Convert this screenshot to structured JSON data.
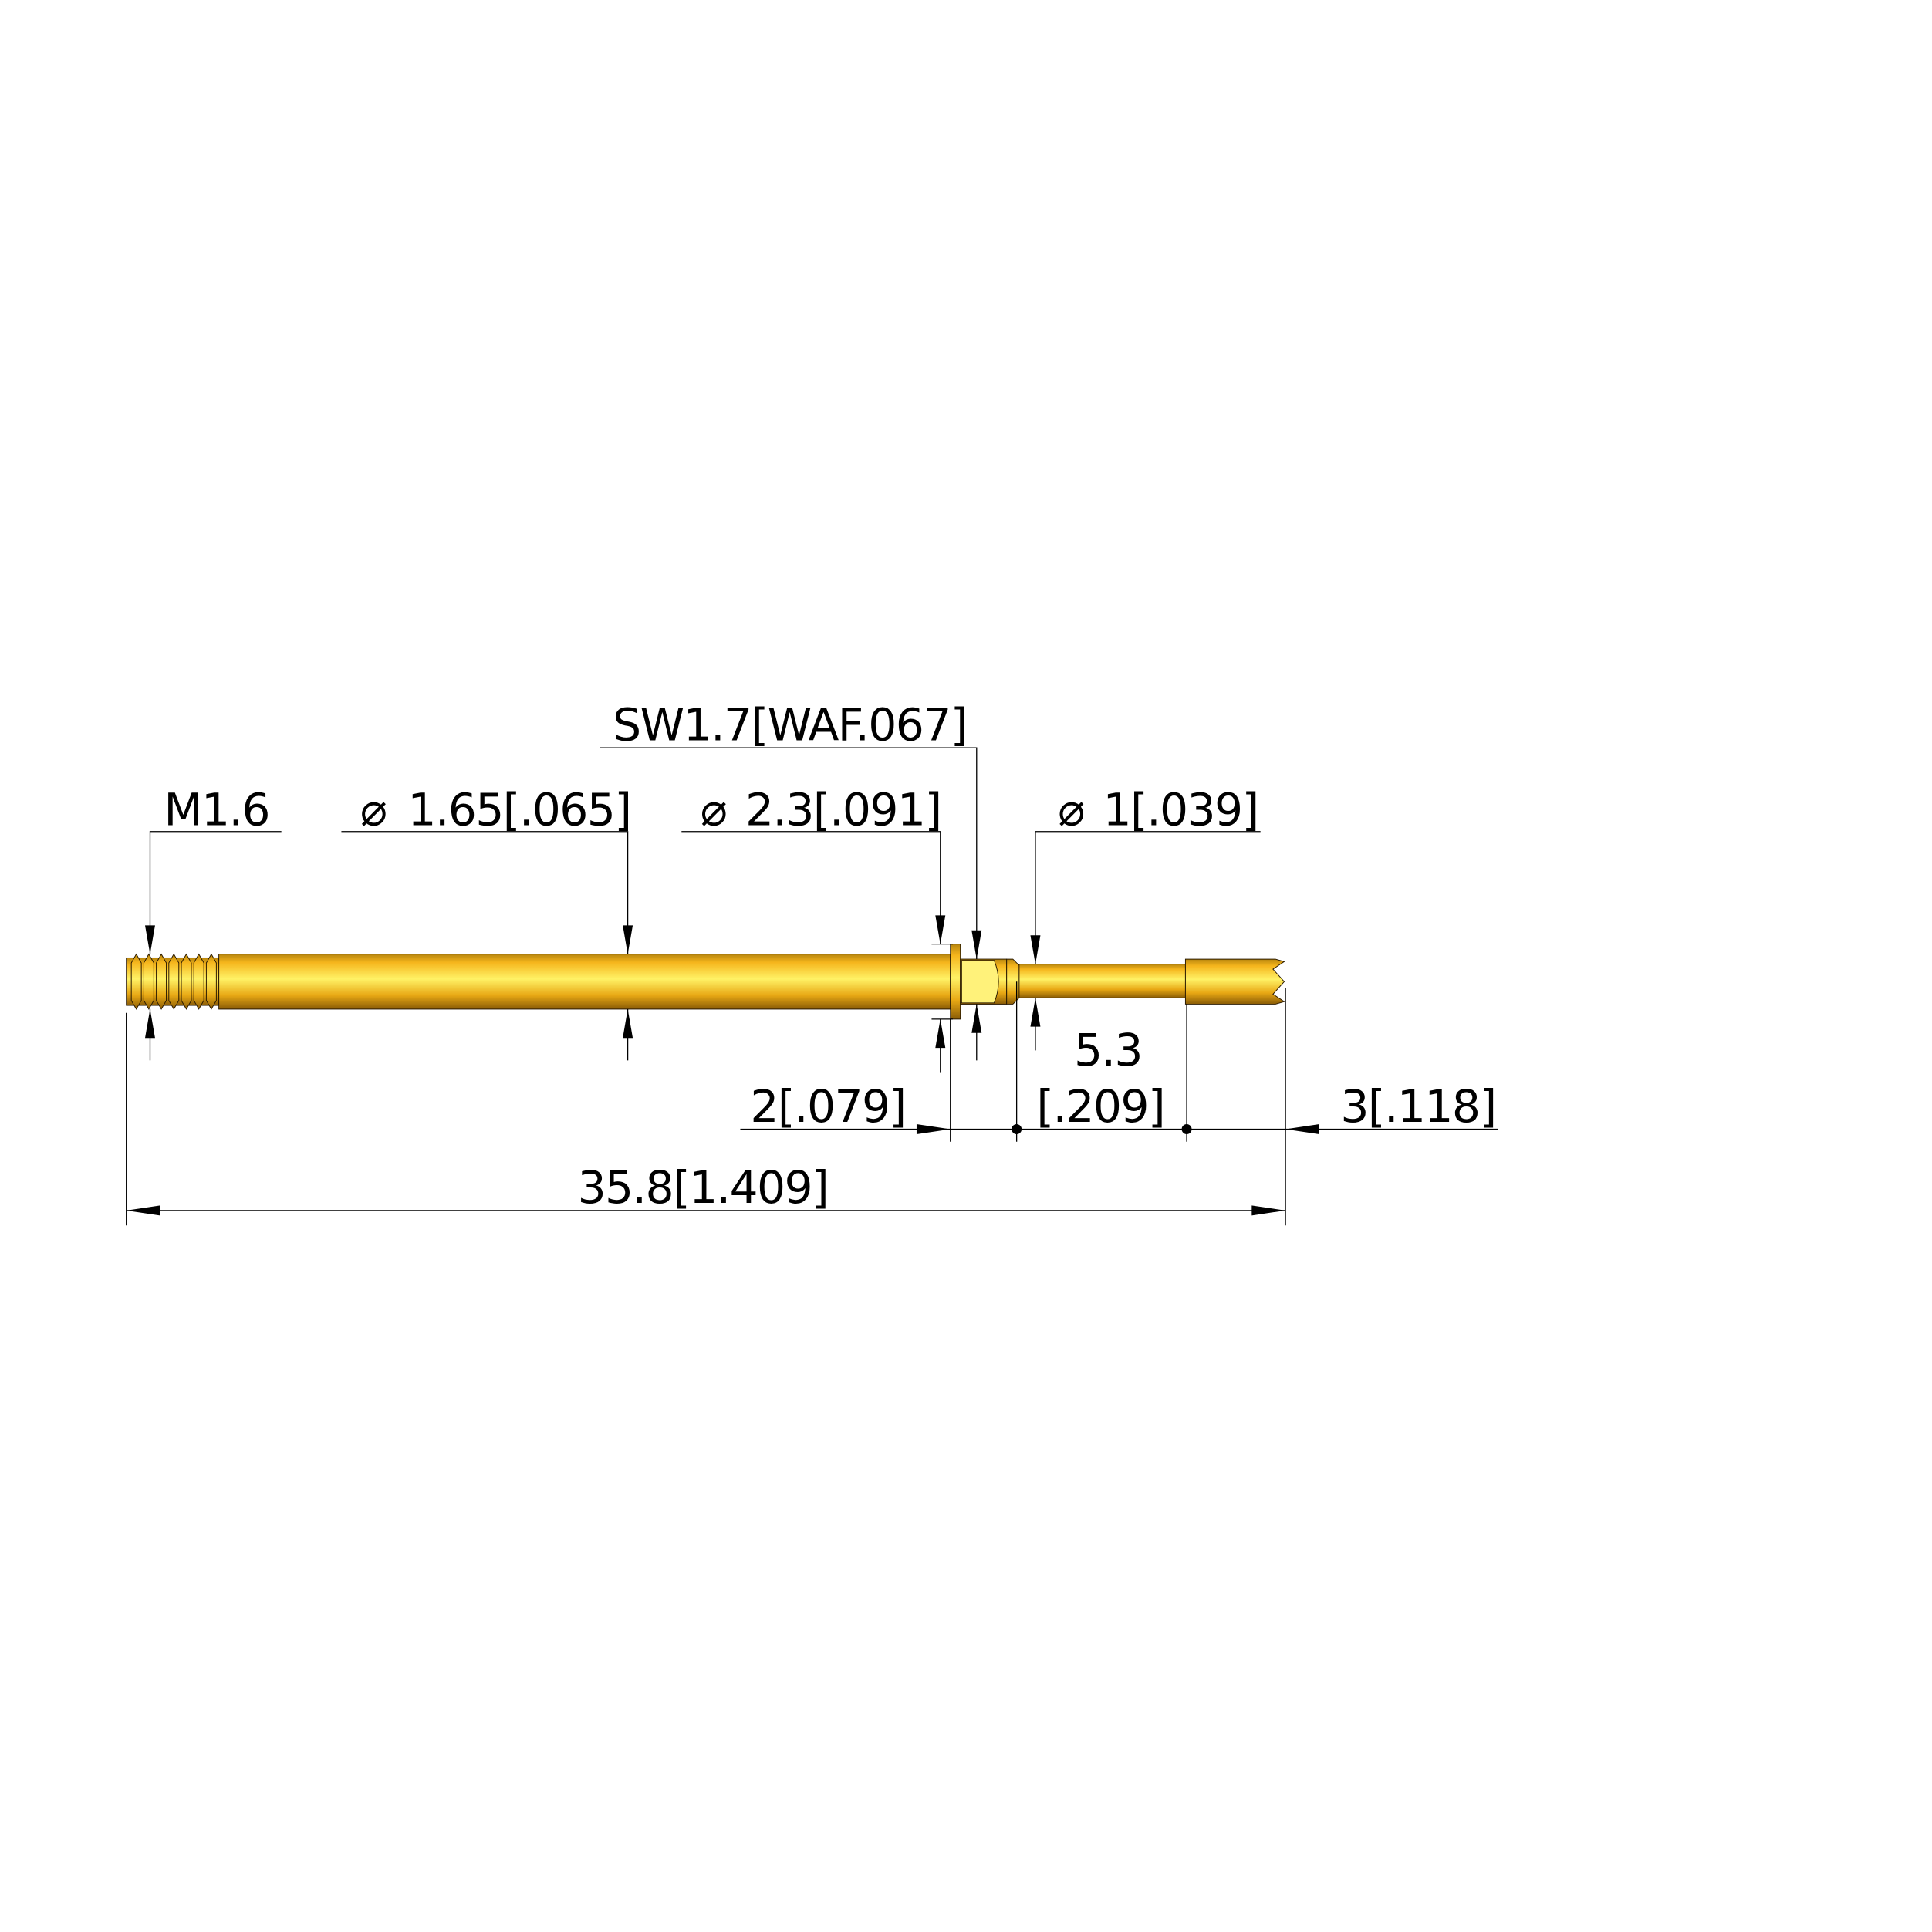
{
  "drawing": {
    "part": "threaded test probe receptacle",
    "colors": {
      "gold_dark": "#9a6a08",
      "gold_mid": "#f5b51c",
      "gold_light": "#fff266",
      "hex_face": "#fff27a",
      "line": "#000000"
    },
    "dimensions": {
      "thread": "M1.6",
      "shaft_diameter": "1.65[.065]",
      "flange_diameter": "2.3[.091]",
      "wrench_size": "SW1.7[WAF.067]",
      "pin_diameter": "1[.039]",
      "flange_offset": "2[.079]",
      "pin_length_mm": "5.3",
      "pin_length_in": "[.209]",
      "tip_length": "3[.118]",
      "overall_length": "35.8[1.409]"
    },
    "diameter_symbol": "⌀"
  }
}
